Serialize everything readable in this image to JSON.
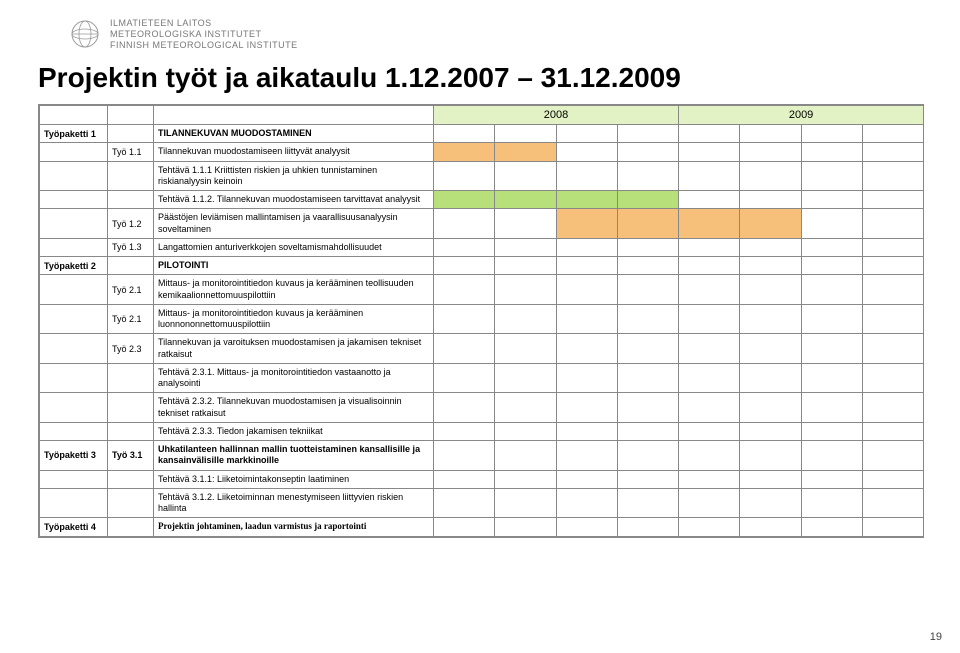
{
  "logo": {
    "line1": "ILMATIETEEN LAITOS",
    "line2": "METEOROLOGISKA INSTITUTET",
    "line3": "FINNISH METEOROLOGICAL INSTITUTE"
  },
  "title": "Projektin työt ja aikataulu 1.12.2007 – 31.12.2009",
  "years": [
    "2008",
    "2009"
  ],
  "page_number": "19",
  "colors": {
    "year_bg": "#e3f2c4",
    "bar_orange": "#f6c07a",
    "bar_green": "#b7e07a",
    "border": "#888888"
  },
  "n_quarters": 8,
  "rows": [
    {
      "wp": "Työpaketti 1",
      "sub": "",
      "desc": "TILANNEKUVAN MUODOSTAMINEN",
      "bold": true,
      "bar": null
    },
    {
      "wp": "",
      "sub": "Työ 1.1",
      "desc": "Tilannekuvan muodostamiseen liittyvät analyysit",
      "bar": {
        "from": 0,
        "to": 1,
        "color": "bar_orange"
      }
    },
    {
      "wp": "",
      "sub": "",
      "desc": "Tehtävä 1.1.1 Kriittisten riskien ja uhkien tunnistaminen riskianalyysin keinoin",
      "bar": null
    },
    {
      "wp": "",
      "sub": "",
      "desc": "Tehtävä 1.1.2. Tilannekuvan muodostamiseen tarvittavat analyysit",
      "bar": {
        "from": 0,
        "to": 3,
        "color": "bar_green"
      }
    },
    {
      "wp": "",
      "sub": "Työ 1.2",
      "desc": "Päästöjen leviämisen mallintamisen ja vaarallisuusanalyysin soveltaminen",
      "bar": {
        "from": 2,
        "to": 5,
        "color": "bar_orange"
      }
    },
    {
      "wp": "",
      "sub": "Työ 1.3",
      "desc": "Langattomien anturiverkkojen soveltamismahdollisuudet",
      "bar": null
    },
    {
      "wp": "Työpaketti 2",
      "sub": "",
      "desc": "PILOTOINTI",
      "bold": true,
      "bar": null
    },
    {
      "wp": "",
      "sub": "Työ 2.1",
      "desc": "Mittaus- ja monitorointitiedon kuvaus ja kerääminen teollisuuden kemikaalionnettomuuspilottiin",
      "bar": null
    },
    {
      "wp": "",
      "sub": "Työ 2.1",
      "desc": "Mittaus- ja monitorointitiedon kuvaus ja kerääminen luonnononnettomuuspilottiin",
      "bar": null
    },
    {
      "wp": "",
      "sub": "Työ 2.3",
      "desc": "Tilannekuvan ja varoituksen muodostamisen ja jakamisen tekniset ratkaisut",
      "bar": null
    },
    {
      "wp": "",
      "sub": "",
      "desc": "Tehtävä 2.3.1. Mittaus- ja monitorointitiedon vastaanotto ja analysointi",
      "bar": null
    },
    {
      "wp": "",
      "sub": "",
      "desc": "Tehtävä 2.3.2. Tilannekuvan muodostamisen ja visualisoinnin tekniset ratkaisut",
      "bar": null
    },
    {
      "wp": "",
      "sub": "",
      "desc": "Tehtävä 2.3.3. Tiedon jakamisen tekniikat",
      "bar": null
    },
    {
      "wp": "Työpaketti 3",
      "sub": "Työ 3.1",
      "desc": "Uhkatilanteen hallinnan mallin tuotteistaminen kansallisille ja kansainvälisille markkinoille",
      "bold": true,
      "bar": null
    },
    {
      "wp": "",
      "sub": "",
      "desc": "Tehtävä 3.1.1: Liiketoimintakonseptin laatiminen",
      "bar": null
    },
    {
      "wp": "",
      "sub": "",
      "desc": "Tehtävä 3.1.2. Liiketoiminnan menestymiseen liittyvien riskien hallinta",
      "bar": null
    },
    {
      "wp": "Työpaketti 4",
      "sub": "",
      "desc": "Projektin johtaminen, laadun varmistus ja raportointi",
      "bold": true,
      "serif": true,
      "bar": null
    }
  ]
}
